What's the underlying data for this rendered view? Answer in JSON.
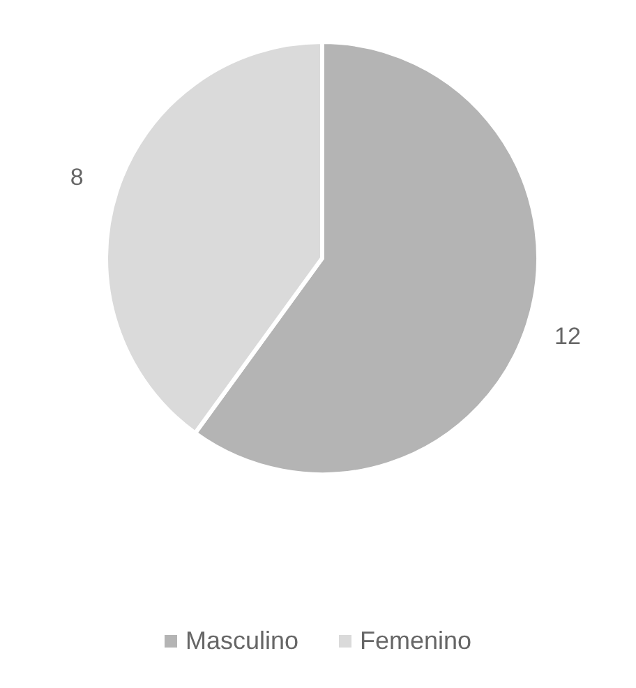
{
  "chart_data": {
    "type": "pie",
    "categories": [
      "Masculino",
      "Femenino"
    ],
    "values": [
      12,
      8
    ],
    "colors": [
      "#b4b4b4",
      "#dadada"
    ],
    "data_labels": true,
    "legend": "bottom"
  }
}
